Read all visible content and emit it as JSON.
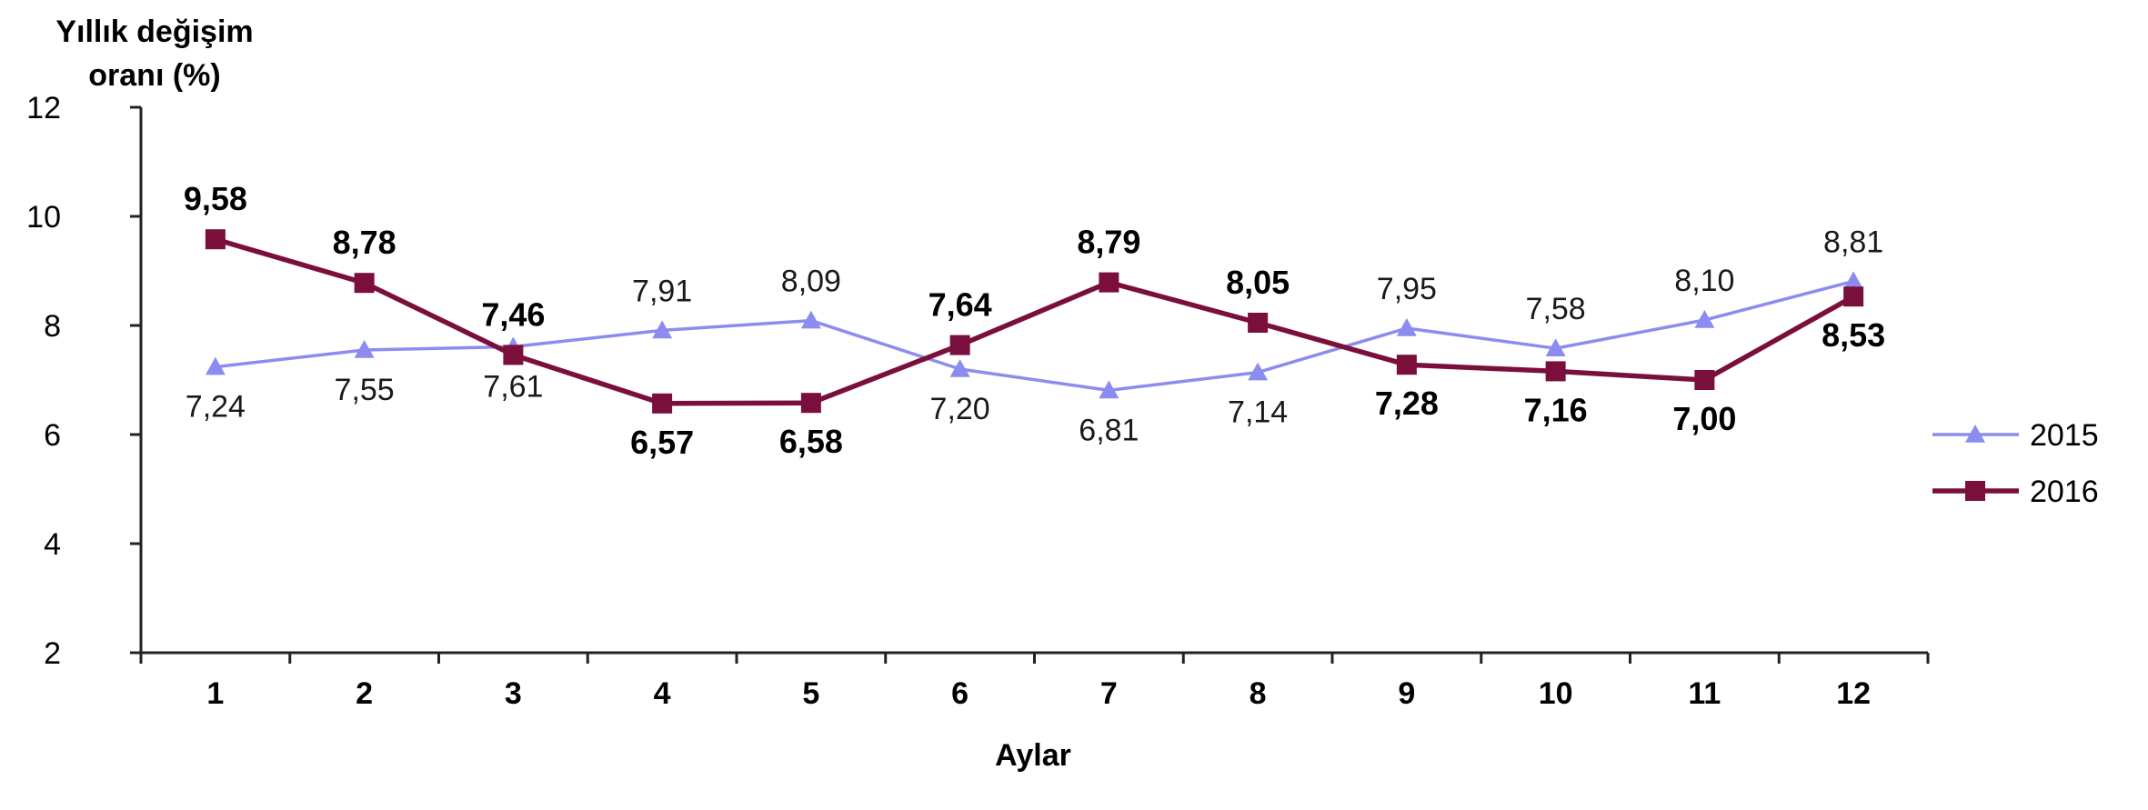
{
  "chart_data": {
    "type": "line",
    "ylabel": [
      "Yıllık değişim",
      "oranı (%)"
    ],
    "xlabel": "Aylar",
    "categories": [
      "1",
      "2",
      "3",
      "4",
      "5",
      "6",
      "7",
      "8",
      "9",
      "10",
      "11",
      "12"
    ],
    "ylim": [
      2,
      12
    ],
    "yticks": [
      "2",
      "4",
      "6",
      "8",
      "10",
      "12"
    ],
    "grid": false,
    "legend_position": "right",
    "series": [
      {
        "name": "2015",
        "color": "#8c8cf0",
        "marker": "triangle",
        "values": [
          7.24,
          7.55,
          7.61,
          7.91,
          8.09,
          7.2,
          6.81,
          7.14,
          7.95,
          7.58,
          8.1,
          8.81
        ],
        "labels": [
          "7,24",
          "7,55",
          "7,61",
          "7,91",
          "8,09",
          "7,20",
          "6,81",
          "7,14",
          "7,95",
          "7,58",
          "8,10",
          "8,81"
        ]
      },
      {
        "name": "2016",
        "color": "#7a0f3c",
        "marker": "square",
        "values": [
          9.58,
          8.78,
          7.46,
          6.57,
          6.58,
          7.64,
          8.79,
          8.05,
          7.28,
          7.16,
          7.0,
          8.53
        ],
        "labels": [
          "9,58",
          "8,78",
          "7,46",
          "6,57",
          "6,58",
          "7,64",
          "8,79",
          "8,05",
          "7,28",
          "7,16",
          "7,00",
          "8,53"
        ]
      }
    ]
  }
}
